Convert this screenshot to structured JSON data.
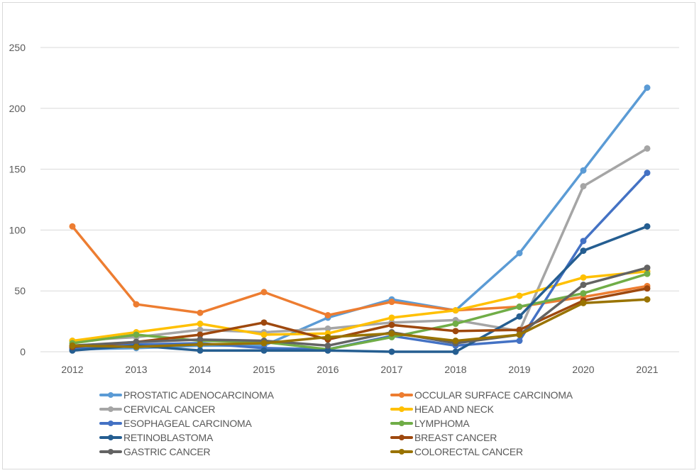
{
  "chart_data": {
    "type": "line",
    "title": "",
    "xlabel": "",
    "ylabel": "",
    "ylim": [
      0,
      250
    ],
    "yticks": [
      0,
      50,
      100,
      150,
      200,
      250
    ],
    "ytick_labels": [
      "0",
      "50",
      "100",
      "150",
      "200",
      "250"
    ],
    "grid": true,
    "legend_position": "bottom",
    "categories": [
      "2012",
      "2013",
      "2014",
      "2015",
      "2016",
      "2017",
      "2018",
      "2019",
      "2020",
      "2021"
    ],
    "series": [
      {
        "name": "PROSTATIC ADENOCARCINOMA",
        "color": "#5B9BD5",
        "values": [
          2,
          3,
          5,
          5,
          28,
          43,
          34,
          81,
          149,
          217
        ]
      },
      {
        "name": "OCCULAR SURFACE CARCINOMA",
        "color": "#ED7D31",
        "values": [
          103,
          39,
          32,
          49,
          30,
          41,
          34,
          37,
          45,
          54
        ]
      },
      {
        "name": "CERVICAL CANCER",
        "color": "#A5A5A5",
        "values": [
          9,
          12,
          18,
          16,
          19,
          24,
          26,
          17,
          136,
          167
        ]
      },
      {
        "name": "HEAD AND NECK",
        "color": "#FFC000",
        "values": [
          9,
          16,
          23,
          14,
          15,
          28,
          34,
          46,
          61,
          66
        ]
      },
      {
        "name": "ESOPHAGEAL CARCINOMA",
        "color": "#4472C4",
        "values": [
          3,
          6,
          7,
          3,
          2,
          13,
          5,
          9,
          91,
          147
        ]
      },
      {
        "name": "LYMPHOMA",
        "color": "#70AD47",
        "values": [
          7,
          14,
          9,
          8,
          2,
          12,
          23,
          37,
          48,
          64
        ]
      },
      {
        "name": "RETINOBLASTOMA",
        "color": "#255E91",
        "values": [
          1,
          5,
          1,
          1,
          1,
          0,
          0,
          29,
          83,
          103
        ]
      },
      {
        "name": "BREAST CANCER",
        "color": "#9E480E",
        "values": [
          4,
          8,
          14,
          24,
          10,
          22,
          17,
          18,
          42,
          52
        ]
      },
      {
        "name": "GASTRIC CANCER",
        "color": "#636363",
        "values": [
          5,
          8,
          10,
          9,
          5,
          16,
          7,
          14,
          55,
          69
        ]
      },
      {
        "name": "COLORECTAL CANCER",
        "color": "#997300",
        "values": [
          5,
          4,
          6,
          7,
          12,
          15,
          9,
          14,
          40,
          43
        ]
      }
    ]
  }
}
